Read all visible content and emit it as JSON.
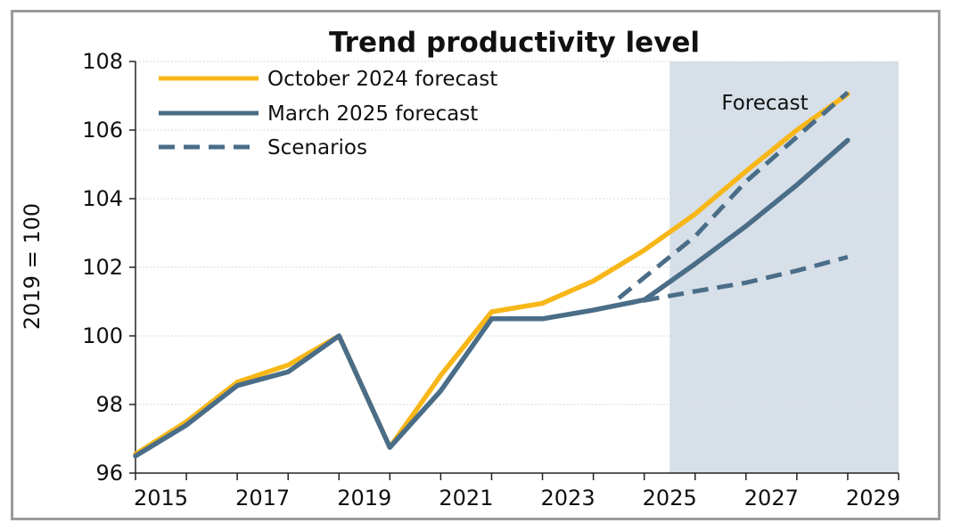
{
  "chart_data": {
    "type": "line",
    "title": "Trend productivity level",
    "ylabel": "2019 = 100",
    "xlabel": "",
    "xlim": [
      2014.5,
      2029.5
    ],
    "ylim": [
      96,
      108
    ],
    "x_ticks": [
      "2015",
      "2017",
      "2019",
      "2021",
      "2023",
      "2025",
      "2027",
      "2029"
    ],
    "y_ticks": [
      "96",
      "98",
      "100",
      "102",
      "104",
      "106",
      "108"
    ],
    "grid": true,
    "legend_position": "top-left",
    "forecast_region": {
      "label": "Forecast",
      "from": 2025,
      "to": 2029.5,
      "color": "#d7dfe8"
    },
    "series": [
      {
        "name": "October 2024 forecast",
        "color": "#f7b718",
        "style": "solid",
        "x": [
          2014.5,
          2015.5,
          2016.5,
          2017.5,
          2018.5,
          2019.5,
          2020.5,
          2021.5,
          2022.5,
          2023.5,
          2024.5,
          2025.5,
          2026.5,
          2027.5,
          2028.5
        ],
        "values": [
          96.55,
          97.5,
          98.65,
          99.15,
          100.0,
          96.75,
          98.85,
          100.7,
          100.95,
          101.6,
          102.5,
          103.55,
          104.8,
          106.0,
          107.05
        ]
      },
      {
        "name": "March 2025 forecast",
        "color": "#4a6d88",
        "style": "solid",
        "x": [
          2014.5,
          2015.5,
          2016.5,
          2017.5,
          2018.5,
          2019.5,
          2020.5,
          2021.5,
          2022.5,
          2023.5,
          2024.5,
          2025.5,
          2026.5,
          2027.5,
          2028.5
        ],
        "values": [
          96.5,
          97.4,
          98.55,
          98.95,
          100.0,
          96.75,
          98.4,
          100.5,
          100.5,
          100.75,
          101.05,
          102.1,
          103.2,
          104.4,
          105.7
        ]
      },
      {
        "name": "Scenarios",
        "color": "#4a6d88",
        "style": "dashed",
        "lines": [
          {
            "x": [
              2024,
              2025.5,
              2026.5,
              2027.5,
              2028.5
            ],
            "values": [
              101.1,
              102.9,
              104.5,
              105.8,
              107.1
            ]
          },
          {
            "x": [
              2024,
              2025.5,
              2026.5,
              2027.5,
              2028.5
            ],
            "values": [
              100.9,
              101.3,
              101.55,
              101.9,
              102.3
            ]
          }
        ]
      }
    ]
  }
}
